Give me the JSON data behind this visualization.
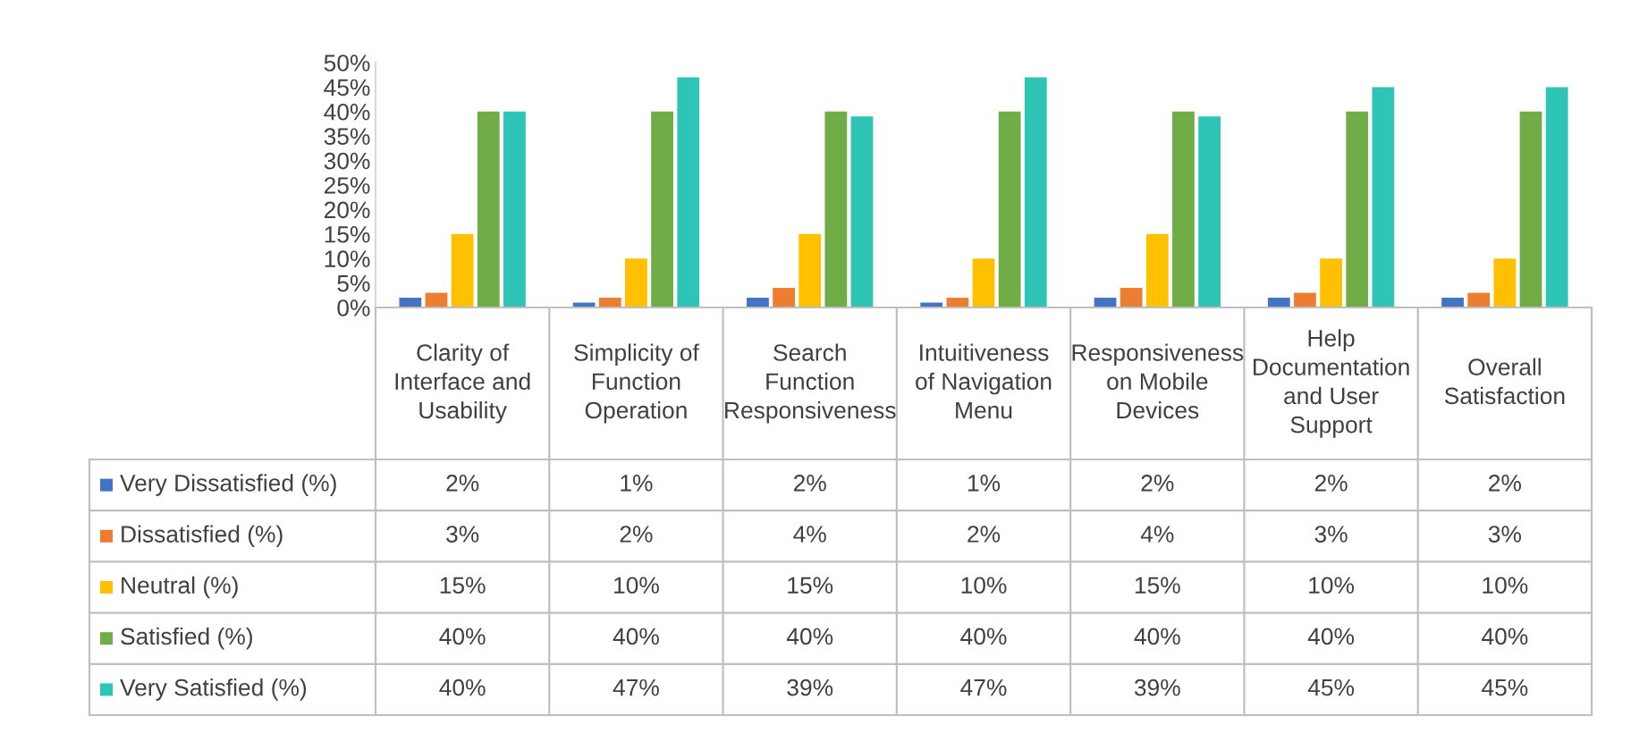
{
  "chart_data": {
    "type": "bar",
    "categories": [
      "Clarity of\nInterface and\nUsability",
      "Simplicity of\nFunction\nOperation",
      "Search\nFunction\nResponsiveness",
      "Intuitiveness\nof Navigation\nMenu",
      "Responsiveness\non Mobile\nDevices",
      "Help\nDocumentation\nand User\nSupport",
      "Overall\nSatisfaction"
    ],
    "series": [
      {
        "name": "Very Dissatisfied (%)",
        "color": "#4472c4",
        "values": [
          2,
          1,
          2,
          1,
          2,
          2,
          2
        ],
        "value_labels": [
          "2%",
          "1%",
          "2%",
          "1%",
          "2%",
          "2%",
          "2%"
        ]
      },
      {
        "name": "Dissatisfied (%)",
        "color": "#ed7d31",
        "values": [
          3,
          2,
          4,
          2,
          4,
          3,
          3
        ],
        "value_labels": [
          "3%",
          "2%",
          "4%",
          "2%",
          "4%",
          "3%",
          "3%"
        ]
      },
      {
        "name": "Neutral (%)",
        "color": "#ffc000",
        "values": [
          15,
          10,
          15,
          10,
          15,
          10,
          10
        ],
        "value_labels": [
          "15%",
          "10%",
          "15%",
          "10%",
          "15%",
          "10%",
          "10%"
        ]
      },
      {
        "name": "Satisfied (%)",
        "color": "#70ad47",
        "values": [
          40,
          40,
          40,
          40,
          40,
          40,
          40
        ],
        "value_labels": [
          "40%",
          "40%",
          "40%",
          "40%",
          "40%",
          "40%",
          "40%"
        ]
      },
      {
        "name": "Very Satisfied (%)",
        "color": "#2ec4b6",
        "values": [
          40,
          47,
          39,
          47,
          39,
          45,
          45
        ],
        "value_labels": [
          "40%",
          "47%",
          "39%",
          "47%",
          "39%",
          "45%",
          "45%"
        ]
      }
    ],
    "ylim": [
      0,
      50
    ],
    "yticks": [
      {
        "value": 0,
        "label": "0%"
      },
      {
        "value": 5,
        "label": "5%"
      },
      {
        "value": 10,
        "label": "10%"
      },
      {
        "value": 15,
        "label": "15%"
      },
      {
        "value": 20,
        "label": "20%"
      },
      {
        "value": 25,
        "label": "25%"
      },
      {
        "value": 30,
        "label": "30%"
      },
      {
        "value": 35,
        "label": "35%"
      },
      {
        "value": 40,
        "label": "40%"
      },
      {
        "value": 45,
        "label": "45%"
      },
      {
        "value": 50,
        "label": "50%"
      }
    ],
    "grid": false,
    "legend": "bottom left"
  }
}
